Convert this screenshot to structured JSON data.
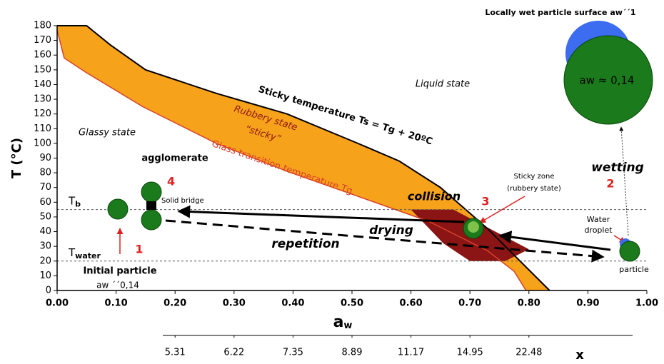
{
  "chart_data": {
    "type": "state-diagram",
    "ylabel": "T (°C)",
    "xlabel": {
      "main": "a",
      "sub": "w"
    },
    "xlim": [
      0,
      1
    ],
    "ylim": [
      0,
      180
    ],
    "xticks": [
      {
        "value": 0,
        "label": "0.00"
      },
      {
        "value": 0.1,
        "label": "0.10"
      },
      {
        "value": 0.2,
        "label": "0.20"
      },
      {
        "value": 0.3,
        "label": "0.30"
      },
      {
        "value": 0.4,
        "label": "0.40"
      },
      {
        "value": 0.5,
        "label": "0.50"
      },
      {
        "value": 0.6,
        "label": "0.60"
      },
      {
        "value": 0.7,
        "label": "0.70"
      },
      {
        "value": 0.8,
        "label": "0.80"
      },
      {
        "value": 0.9,
        "label": "0.90"
      },
      {
        "value": 1,
        "label": "1.00"
      }
    ],
    "yticks": [
      0,
      10,
      20,
      30,
      40,
      50,
      60,
      70,
      80,
      90,
      100,
      110,
      120,
      130,
      140,
      150,
      160,
      170,
      180
    ],
    "x2label": "x",
    "x2ticks": [
      {
        "value": 0.2,
        "label": "5.31"
      },
      {
        "value": 0.3,
        "label": "6.22"
      },
      {
        "value": 0.4,
        "label": "7.35"
      },
      {
        "value": 0.5,
        "label": "8.89"
      },
      {
        "value": 0.6,
        "label": "11.17"
      },
      {
        "value": 0.7,
        "label": "14.95"
      },
      {
        "value": 0.8,
        "label": "22.48"
      }
    ],
    "upper_curve": {
      "color": "#000000",
      "x": [
        0,
        0.05,
        0.09,
        0.15,
        0.27,
        0.39,
        0.51,
        0.58,
        0.65,
        0.73,
        0.78,
        0.835
      ],
      "y": [
        180,
        180,
        167,
        150,
        134,
        120,
        100,
        88,
        70,
        42,
        22,
        0
      ]
    },
    "lower_curve": {
      "color": "#d9402b",
      "x": [
        0,
        0.012,
        0.05,
        0.145,
        0.27,
        0.39,
        0.51,
        0.63,
        0.73,
        0.775,
        0.795
      ],
      "y": [
        177,
        158,
        148,
        125,
        100,
        81,
        64,
        47,
        27,
        13,
        0
      ]
    },
    "band_color": "#f7a21b",
    "sticky_zone": {
      "color": "#8b1414",
      "x": [
        0.6,
        0.672,
        0.8,
        0.76,
        0.7,
        0.655
      ],
      "y": [
        55,
        55,
        28,
        20,
        20,
        32
      ]
    },
    "reference_lines": [
      {
        "value": 55,
        "label": "T",
        "sub": "b"
      },
      {
        "value": 20,
        "label": "T",
        "sub": "water"
      }
    ],
    "annotations": {
      "sticky_temperature": "Sticky temperature Ts = Tg + 20ºC",
      "liquid": "Liquid state",
      "rubbery": "Rubbery state",
      "sticky": "“sticky”",
      "glassy": "Glassy state",
      "glass_transition": "Glass transition temperature Tg",
      "agglomerate": "agglomerate",
      "n4": "4",
      "solid_bridge": "Solid bridge",
      "collision": "collision",
      "n3": "3",
      "sticky_zone_1": "Sticky zone",
      "sticky_zone_2": "(rubbery state)",
      "wetting": "wetting",
      "n2": "2",
      "water": "Water",
      "droplet": "droplet",
      "particle": "particle",
      "drying": "drying",
      "repetition": "repetition",
      "n1": "1",
      "initial_particle": "Initial particle",
      "initial_aw": "aw ´´0,14",
      "locally_wet": "Locally wet particle surface aw´´1",
      "aw_big": "aw ≈ 0,14"
    }
  }
}
